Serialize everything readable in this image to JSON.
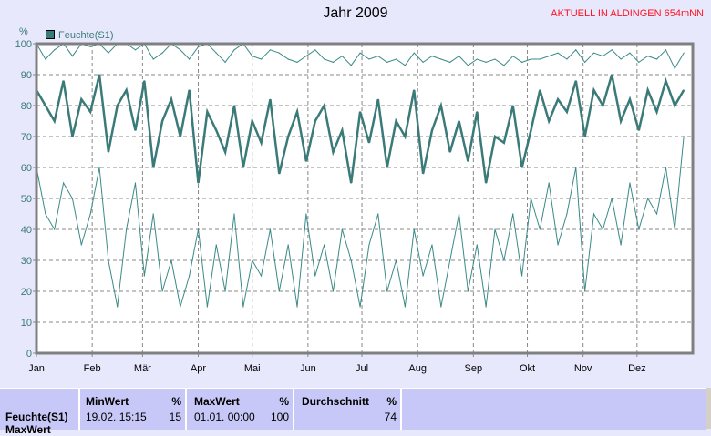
{
  "title": "Jahr 2009",
  "note": "AKTUELL IN ALDINGEN 654mNN",
  "chart_data": {
    "type": "line",
    "title": "Jahr 2009",
    "ylabel": "%",
    "ylim": [
      0,
      100
    ],
    "yticks": [
      "0",
      "10",
      "20",
      "30",
      "40",
      "50",
      "60",
      "70",
      "80",
      "90",
      "100"
    ],
    "xticks": [
      "Jan",
      "Feb",
      "Mär",
      "Apr",
      "Mai",
      "Jun",
      "Jul",
      "Aug",
      "Sep",
      "Okt",
      "Nov",
      "Dez"
    ],
    "month_start_days": [
      0,
      31,
      59,
      90,
      120,
      151,
      181,
      212,
      243,
      273,
      304,
      334
    ],
    "x_step_days": 5,
    "legend": [
      "Feuchte(S1)"
    ],
    "legend_placement": "top-left",
    "grid": true,
    "series": [
      {
        "name": "Feuchte(S1) mean",
        "color": "#3a7a78",
        "values": [
          85,
          80,
          75,
          88,
          70,
          82,
          78,
          90,
          65,
          80,
          85,
          72,
          88,
          60,
          75,
          82,
          70,
          85,
          55,
          78,
          72,
          65,
          80,
          60,
          75,
          68,
          82,
          58,
          70,
          78,
          62,
          75,
          80,
          65,
          72,
          55,
          78,
          68,
          82,
          60,
          75,
          70,
          85,
          58,
          72,
          80,
          65,
          75,
          62,
          78,
          55,
          70,
          68,
          80,
          60,
          72,
          85,
          75,
          82,
          78,
          88,
          70,
          85,
          80,
          90,
          75,
          82,
          72,
          85,
          78,
          88,
          80,
          85
        ]
      },
      {
        "name": "Feuchte(S1) min",
        "color": "#3a8a88",
        "values": [
          60,
          45,
          40,
          55,
          50,
          35,
          45,
          60,
          30,
          15,
          40,
          55,
          25,
          45,
          20,
          30,
          15,
          25,
          40,
          15,
          35,
          20,
          45,
          15,
          30,
          25,
          40,
          20,
          35,
          15,
          45,
          25,
          35,
          20,
          40,
          30,
          15,
          35,
          45,
          20,
          30,
          15,
          40,
          25,
          35,
          15,
          30,
          45,
          20,
          35,
          15,
          40,
          30,
          45,
          25,
          50,
          40,
          55,
          35,
          45,
          60,
          20,
          45,
          40,
          50,
          35,
          55,
          40,
          50,
          45,
          60,
          40,
          70
        ]
      },
      {
        "name": "Feuchte(S1) max",
        "color": "#3a8a88",
        "values": [
          100,
          95,
          98,
          100,
          96,
          100,
          99,
          100,
          97,
          100,
          100,
          98,
          100,
          95,
          97,
          100,
          98,
          95,
          99,
          100,
          97,
          94,
          98,
          100,
          96,
          95,
          98,
          97,
          95,
          94,
          96,
          98,
          95,
          94,
          96,
          93,
          97,
          95,
          96,
          94,
          95,
          93,
          97,
          94,
          96,
          95,
          94,
          96,
          93,
          95,
          94,
          95,
          93,
          96,
          94,
          95,
          95,
          96,
          97,
          95,
          98,
          94,
          97,
          96,
          98,
          95,
          97,
          94,
          96,
          95,
          98,
          92,
          97
        ]
      }
    ]
  },
  "table": {
    "row_label": "Feuchte(S1)",
    "row_label2": "MaxWert",
    "min": {
      "header": "MinWert",
      "unit": "%",
      "time": "19.02.  15:15",
      "value": "15"
    },
    "max": {
      "header": "MaxWert",
      "unit": "%",
      "time": "01.01.  00:00",
      "value": "100"
    },
    "avg": {
      "header": "Durchschnitt",
      "unit": "%",
      "value": "74"
    }
  }
}
